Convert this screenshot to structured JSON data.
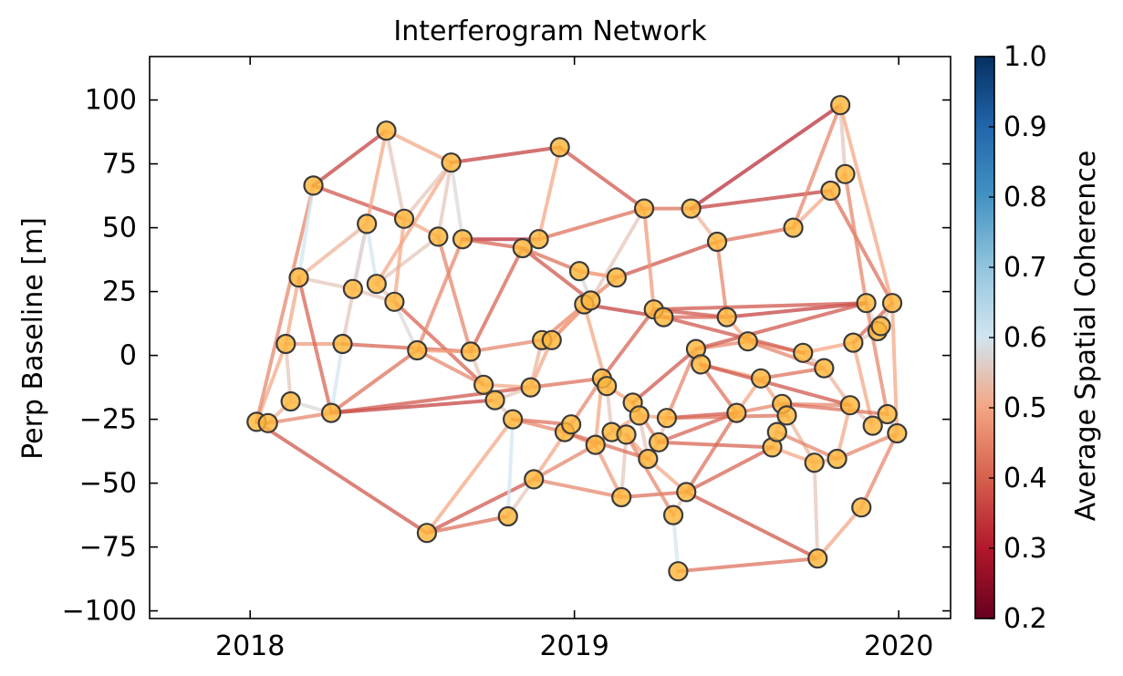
{
  "chart_data": {
    "type": "network",
    "title": "Interferogram Network",
    "xlabel": "",
    "ylabel": "Perp Baseline [m]",
    "colorbar_label": "Average Spatial Coherence",
    "xlim": [
      2017.69,
      2020.16
    ],
    "ylim": [
      -103,
      117
    ],
    "x_ticks": [
      2018,
      2019,
      2020
    ],
    "x_tick_labels": [
      "2018",
      "2019",
      "2020"
    ],
    "y_ticks": [
      100,
      75,
      50,
      25,
      0,
      -25,
      -50,
      -75,
      -100
    ],
    "y_tick_labels": [
      "100",
      "75",
      "50",
      "25",
      "0",
      "−25",
      "−50",
      "−75",
      "−100"
    ],
    "colorbar_range": [
      0.2,
      1.0
    ],
    "colorbar_ticks": [
      1.0,
      0.9,
      0.8,
      0.7,
      0.6,
      0.5,
      0.4,
      0.3,
      0.2
    ],
    "colorbar_tick_labels": [
      "1.0",
      "0.9",
      "0.8",
      "0.7",
      "0.6",
      "0.5",
      "0.4",
      "0.3",
      "0.2"
    ],
    "colormap": "RdBu",
    "colors": {
      "node_fill": "#ffb63b",
      "node_edge": "#3a3a3a",
      "colorbar_stops": [
        "#67001f",
        "#b2182b",
        "#d6604d",
        "#f4a582",
        "#d1e5f0",
        "#92c5de",
        "#4393c3",
        "#2166ac",
        "#053061"
      ]
    },
    "acquisitions": [
      {
        "id": 0,
        "date": 2018.02,
        "bperp": -26
      },
      {
        "id": 1,
        "date": 2018.055,
        "bperp": -26.5
      },
      {
        "id": 2,
        "date": 2018.11,
        "bperp": 4.5
      },
      {
        "id": 3,
        "date": 2018.125,
        "bperp": -18
      },
      {
        "id": 4,
        "date": 2018.15,
        "bperp": 30.5
      },
      {
        "id": 5,
        "date": 2018.195,
        "bperp": 66.5
      },
      {
        "id": 6,
        "date": 2018.25,
        "bperp": -22.5
      },
      {
        "id": 7,
        "date": 2018.285,
        "bperp": 4.5
      },
      {
        "id": 8,
        "date": 2018.317,
        "bperp": 26
      },
      {
        "id": 9,
        "date": 2018.36,
        "bperp": 51.5
      },
      {
        "id": 10,
        "date": 2018.39,
        "bperp": 28
      },
      {
        "id": 11,
        "date": 2018.42,
        "bperp": 88
      },
      {
        "id": 12,
        "date": 2018.445,
        "bperp": 21
      },
      {
        "id": 13,
        "date": 2018.475,
        "bperp": 53.5
      },
      {
        "id": 14,
        "date": 2018.515,
        "bperp": 2
      },
      {
        "id": 15,
        "date": 2018.545,
        "bperp": -69.5
      },
      {
        "id": 16,
        "date": 2018.58,
        "bperp": 46.5
      },
      {
        "id": 17,
        "date": 2018.62,
        "bperp": 75.5
      },
      {
        "id": 18,
        "date": 2018.655,
        "bperp": 45.5
      },
      {
        "id": 19,
        "date": 2018.68,
        "bperp": 1.5
      },
      {
        "id": 20,
        "date": 2018.72,
        "bperp": -11.5
      },
      {
        "id": 21,
        "date": 2018.755,
        "bperp": -17.5
      },
      {
        "id": 22,
        "date": 2018.795,
        "bperp": -63
      },
      {
        "id": 23,
        "date": 2018.81,
        "bperp": -25
      },
      {
        "id": 24,
        "date": 2018.84,
        "bperp": 42
      },
      {
        "id": 25,
        "date": 2018.865,
        "bperp": -12.5
      },
      {
        "id": 26,
        "date": 2018.875,
        "bperp": -48.5
      },
      {
        "id": 27,
        "date": 2018.89,
        "bperp": 45.5
      },
      {
        "id": 28,
        "date": 2018.9,
        "bperp": 6
      },
      {
        "id": 29,
        "date": 2018.93,
        "bperp": 6
      },
      {
        "id": 30,
        "date": 2018.955,
        "bperp": 81.5
      },
      {
        "id": 31,
        "date": 2018.97,
        "bperp": -30
      },
      {
        "id": 32,
        "date": 2018.99,
        "bperp": -27
      },
      {
        "id": 33,
        "date": 2019.015,
        "bperp": 33
      },
      {
        "id": 34,
        "date": 2019.03,
        "bperp": 20
      },
      {
        "id": 35,
        "date": 2019.05,
        "bperp": 21.5
      },
      {
        "id": 36,
        "date": 2019.065,
        "bperp": -35
      },
      {
        "id": 37,
        "date": 2019.085,
        "bperp": -9
      },
      {
        "id": 38,
        "date": 2019.1,
        "bperp": -12
      },
      {
        "id": 39,
        "date": 2019.115,
        "bperp": -30
      },
      {
        "id": 40,
        "date": 2019.13,
        "bperp": 30.5
      },
      {
        "id": 41,
        "date": 2019.145,
        "bperp": -55.5
      },
      {
        "id": 42,
        "date": 2019.16,
        "bperp": -31
      },
      {
        "id": 43,
        "date": 2019.18,
        "bperp": -18.5
      },
      {
        "id": 44,
        "date": 2019.2,
        "bperp": -23.5
      },
      {
        "id": 45,
        "date": 2019.215,
        "bperp": 57.5
      },
      {
        "id": 46,
        "date": 2019.227,
        "bperp": -40.5
      },
      {
        "id": 47,
        "date": 2019.245,
        "bperp": 18
      },
      {
        "id": 48,
        "date": 2019.26,
        "bperp": -34
      },
      {
        "id": 49,
        "date": 2019.275,
        "bperp": 15
      },
      {
        "id": 50,
        "date": 2019.285,
        "bperp": -24.5
      },
      {
        "id": 51,
        "date": 2019.305,
        "bperp": -62.5
      },
      {
        "id": 52,
        "date": 2019.32,
        "bperp": -84.5
      },
      {
        "id": 53,
        "date": 2019.345,
        "bperp": -53.5
      },
      {
        "id": 54,
        "date": 2019.36,
        "bperp": 57.5
      },
      {
        "id": 55,
        "date": 2019.375,
        "bperp": 2.5
      },
      {
        "id": 56,
        "date": 2019.39,
        "bperp": -3.5
      },
      {
        "id": 57,
        "date": 2019.44,
        "bperp": 44.5
      },
      {
        "id": 58,
        "date": 2019.47,
        "bperp": 15
      },
      {
        "id": 59,
        "date": 2019.5,
        "bperp": -22.5
      },
      {
        "id": 60,
        "date": 2019.535,
        "bperp": 5.5
      },
      {
        "id": 61,
        "date": 2019.575,
        "bperp": -9
      },
      {
        "id": 62,
        "date": 2019.61,
        "bperp": -36
      },
      {
        "id": 63,
        "date": 2019.625,
        "bperp": -30
      },
      {
        "id": 64,
        "date": 2019.64,
        "bperp": -19
      },
      {
        "id": 65,
        "date": 2019.655,
        "bperp": -23.5
      },
      {
        "id": 66,
        "date": 2019.675,
        "bperp": 50
      },
      {
        "id": 67,
        "date": 2019.705,
        "bperp": 1
      },
      {
        "id": 68,
        "date": 2019.74,
        "bperp": -42
      },
      {
        "id": 69,
        "date": 2019.75,
        "bperp": -79.5
      },
      {
        "id": 70,
        "date": 2019.77,
        "bperp": -5
      },
      {
        "id": 71,
        "date": 2019.79,
        "bperp": 64.5
      },
      {
        "id": 72,
        "date": 2019.81,
        "bperp": -40.5
      },
      {
        "id": 73,
        "date": 2019.82,
        "bperp": 98
      },
      {
        "id": 74,
        "date": 2019.835,
        "bperp": 71
      },
      {
        "id": 75,
        "date": 2019.85,
        "bperp": -19.5
      },
      {
        "id": 76,
        "date": 2019.86,
        "bperp": 5
      },
      {
        "id": 77,
        "date": 2019.885,
        "bperp": -59.5
      },
      {
        "id": 78,
        "date": 2019.9,
        "bperp": 20.5
      },
      {
        "id": 79,
        "date": 2019.92,
        "bperp": -27.5
      },
      {
        "id": 80,
        "date": 2019.935,
        "bperp": 9.5
      },
      {
        "id": 81,
        "date": 2019.945,
        "bperp": 11.5
      },
      {
        "id": 82,
        "date": 2019.965,
        "bperp": -23
      },
      {
        "id": 83,
        "date": 2019.98,
        "bperp": 20.5
      },
      {
        "id": 84,
        "date": 2019.995,
        "bperp": -30.5
      }
    ],
    "pairs": [
      [
        0,
        1,
        0.42
      ],
      [
        0,
        2,
        0.5
      ],
      [
        0,
        5,
        0.45
      ],
      [
        0,
        15,
        0.38
      ],
      [
        1,
        3,
        0.52
      ],
      [
        1,
        6,
        0.45
      ],
      [
        2,
        3,
        0.55
      ],
      [
        2,
        4,
        0.5
      ],
      [
        2,
        7,
        0.48
      ],
      [
        3,
        6,
        0.58
      ],
      [
        4,
        5,
        0.6
      ],
      [
        4,
        8,
        0.55
      ],
      [
        4,
        9,
        0.52
      ],
      [
        5,
        11,
        0.35
      ],
      [
        5,
        13,
        0.38
      ],
      [
        6,
        7,
        0.6
      ],
      [
        6,
        14,
        0.42
      ],
      [
        6,
        21,
        0.35
      ],
      [
        7,
        9,
        0.55
      ],
      [
        7,
        19,
        0.4
      ],
      [
        8,
        9,
        0.58
      ],
      [
        8,
        12,
        0.55
      ],
      [
        9,
        10,
        0.6
      ],
      [
        9,
        11,
        0.5
      ],
      [
        10,
        16,
        0.55
      ],
      [
        10,
        17,
        0.5
      ],
      [
        11,
        13,
        0.55
      ],
      [
        11,
        17,
        0.5
      ],
      [
        12,
        14,
        0.58
      ],
      [
        12,
        13,
        0.5
      ],
      [
        12,
        20,
        0.4
      ],
      [
        13,
        17,
        0.55
      ],
      [
        13,
        16,
        0.5
      ],
      [
        14,
        19,
        0.5
      ],
      [
        14,
        18,
        0.45
      ],
      [
        15,
        22,
        0.42
      ],
      [
        15,
        26,
        0.38
      ],
      [
        15,
        23,
        0.5
      ],
      [
        16,
        17,
        0.55
      ],
      [
        16,
        19,
        0.45
      ],
      [
        17,
        18,
        0.58
      ],
      [
        17,
        30,
        0.35
      ],
      [
        18,
        27,
        0.32
      ],
      [
        18,
        24,
        0.4
      ],
      [
        19,
        20,
        0.55
      ],
      [
        19,
        28,
        0.45
      ],
      [
        20,
        25,
        0.5
      ],
      [
        20,
        21,
        0.6
      ],
      [
        21,
        23,
        0.55
      ],
      [
        22,
        23,
        0.6
      ],
      [
        22,
        26,
        0.55
      ],
      [
        23,
        31,
        0.45
      ],
      [
        23,
        32,
        0.42
      ],
      [
        24,
        27,
        0.55
      ],
      [
        24,
        19,
        0.4
      ],
      [
        24,
        33,
        0.42
      ],
      [
        24,
        35,
        0.38
      ],
      [
        25,
        29,
        0.5
      ],
      [
        25,
        37,
        0.42
      ],
      [
        25,
        6,
        0.38
      ],
      [
        26,
        32,
        0.5
      ],
      [
        26,
        41,
        0.45
      ],
      [
        27,
        30,
        0.5
      ],
      [
        27,
        45,
        0.42
      ],
      [
        28,
        29,
        0.55
      ],
      [
        28,
        25,
        0.52
      ],
      [
        29,
        35,
        0.45
      ],
      [
        30,
        45,
        0.38
      ],
      [
        31,
        32,
        0.55
      ],
      [
        31,
        36,
        0.45
      ],
      [
        32,
        37,
        0.45
      ],
      [
        33,
        35,
        0.58
      ],
      [
        33,
        40,
        0.48
      ],
      [
        34,
        35,
        0.55
      ],
      [
        34,
        38,
        0.5
      ],
      [
        34,
        49,
        0.35
      ],
      [
        35,
        45,
        0.55
      ],
      [
        36,
        37,
        0.5
      ],
      [
        36,
        39,
        0.45
      ],
      [
        37,
        38,
        0.6
      ],
      [
        37,
        47,
        0.4
      ],
      [
        38,
        39,
        0.55
      ],
      [
        38,
        43,
        0.5
      ],
      [
        39,
        42,
        0.58
      ],
      [
        39,
        44,
        0.5
      ],
      [
        40,
        57,
        0.38
      ],
      [
        40,
        33,
        0.5
      ],
      [
        41,
        42,
        0.55
      ],
      [
        41,
        53,
        0.42
      ],
      [
        42,
        46,
        0.5
      ],
      [
        43,
        44,
        0.58
      ],
      [
        43,
        48,
        0.45
      ],
      [
        43,
        55,
        0.38
      ],
      [
        44,
        46,
        0.55
      ],
      [
        45,
        54,
        0.42
      ],
      [
        46,
        48,
        0.52
      ],
      [
        46,
        53,
        0.5
      ],
      [
        47,
        49,
        0.55
      ],
      [
        47,
        58,
        0.38
      ],
      [
        48,
        50,
        0.55
      ],
      [
        48,
        59,
        0.4
      ],
      [
        49,
        58,
        0.4
      ],
      [
        50,
        55,
        0.45
      ],
      [
        50,
        59,
        0.38
      ],
      [
        51,
        52,
        0.6
      ],
      [
        51,
        53,
        0.55
      ],
      [
        52,
        69,
        0.42
      ],
      [
        53,
        59,
        0.42
      ],
      [
        53,
        69,
        0.38
      ],
      [
        54,
        57,
        0.52
      ],
      [
        54,
        71,
        0.35
      ],
      [
        54,
        73,
        0.32
      ],
      [
        55,
        56,
        0.58
      ],
      [
        55,
        60,
        0.45
      ],
      [
        55,
        78,
        0.38
      ],
      [
        56,
        61,
        0.5
      ],
      [
        57,
        66,
        0.42
      ],
      [
        58,
        60,
        0.5
      ],
      [
        58,
        78,
        0.35
      ],
      [
        59,
        61,
        0.5
      ],
      [
        59,
        64,
        0.45
      ],
      [
        60,
        67,
        0.5
      ],
      [
        61,
        70,
        0.42
      ],
      [
        62,
        63,
        0.55
      ],
      [
        62,
        68,
        0.5
      ],
      [
        63,
        64,
        0.55
      ],
      [
        64,
        65,
        0.6
      ],
      [
        64,
        75,
        0.45
      ],
      [
        65,
        68,
        0.52
      ],
      [
        66,
        71,
        0.5
      ],
      [
        66,
        73,
        0.45
      ],
      [
        67,
        70,
        0.55
      ],
      [
        67,
        76,
        0.5
      ],
      [
        68,
        69,
        0.55
      ],
      [
        68,
        72,
        0.52
      ],
      [
        69,
        77,
        0.5
      ],
      [
        70,
        75,
        0.52
      ],
      [
        71,
        74,
        0.52
      ],
      [
        71,
        83,
        0.42
      ],
      [
        72,
        75,
        0.5
      ],
      [
        72,
        84,
        0.45
      ],
      [
        73,
        74,
        0.55
      ],
      [
        73,
        83,
        0.5
      ],
      [
        74,
        78,
        0.45
      ],
      [
        75,
        79,
        0.55
      ],
      [
        76,
        80,
        0.55
      ],
      [
        76,
        79,
        0.5
      ],
      [
        77,
        84,
        0.45
      ],
      [
        78,
        80,
        0.58
      ],
      [
        78,
        82,
        0.45
      ],
      [
        79,
        82,
        0.6
      ],
      [
        80,
        81,
        0.6
      ],
      [
        81,
        83,
        0.55
      ],
      [
        82,
        84,
        0.58
      ],
      [
        83,
        84,
        0.5
      ],
      [
        57,
        58,
        0.45
      ],
      [
        56,
        59,
        0.42
      ],
      [
        62,
        53,
        0.4
      ],
      [
        49,
        67,
        0.38
      ],
      [
        50,
        65,
        0.42
      ],
      [
        48,
        62,
        0.4
      ],
      [
        42,
        51,
        0.45
      ],
      [
        31,
        46,
        0.42
      ],
      [
        36,
        41,
        0.48
      ],
      [
        26,
        36,
        0.45
      ],
      [
        21,
        25,
        0.55
      ],
      [
        28,
        40,
        0.45
      ],
      [
        29,
        34,
        0.5
      ],
      [
        45,
        47,
        0.48
      ],
      [
        47,
        78,
        0.38
      ],
      [
        60,
        70,
        0.45
      ],
      [
        61,
        65,
        0.5
      ],
      [
        56,
        75,
        0.38
      ],
      [
        64,
        82,
        0.42
      ],
      [
        44,
        50,
        0.5
      ],
      [
        63,
        72,
        0.45
      ],
      [
        76,
        83,
        0.4
      ],
      [
        20,
        14,
        0.45
      ],
      [
        10,
        12,
        0.55
      ],
      [
        4,
        6,
        0.4
      ]
    ]
  }
}
